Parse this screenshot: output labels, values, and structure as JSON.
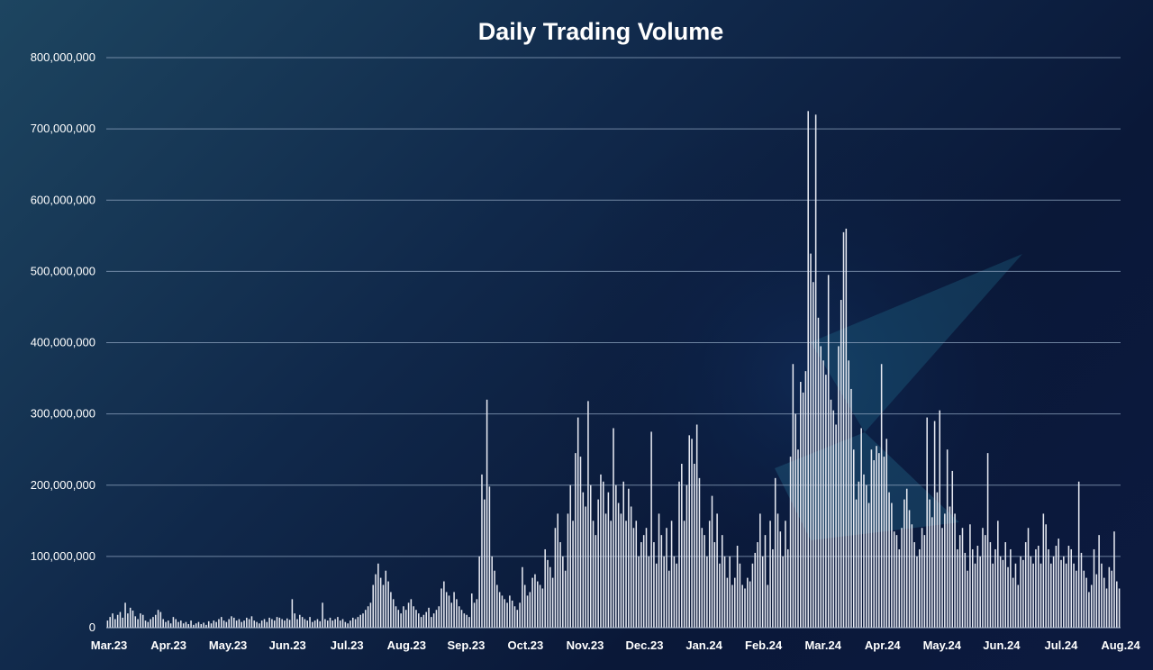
{
  "chart_data": {
    "type": "bar",
    "title": "Daily Trading Volume",
    "xlabel": "",
    "ylabel": "",
    "ylim": [
      0,
      800000000
    ],
    "yticks": [
      "0",
      "100,000,000",
      "200,000,000",
      "300,000,000",
      "400,000,000",
      "500,000,000",
      "600,000,000",
      "700,000,000",
      "800,000,000"
    ],
    "ytick_values": [
      0,
      100000000,
      200000000,
      300000000,
      400000000,
      500000000,
      600000000,
      700000000,
      800000000
    ],
    "x_start_label": "Mar.23",
    "xticks": [
      "Mar.23",
      "Apr.23",
      "May.23",
      "Jun.23",
      "Jul.23",
      "Aug.23",
      "Sep.23",
      "Oct.23",
      "Nov.23",
      "Dec.23",
      "Jan.24",
      "Feb.24",
      "Mar.24",
      "Apr.24",
      "May.24",
      "Jun.24",
      "Jul.24",
      "Aug.24"
    ],
    "grid": true,
    "legend": "none",
    "bar_color": "#e6e9f2",
    "series": [
      {
        "values": [
          10000000,
          15000000,
          20000000,
          12000000,
          18000000,
          22000000,
          14000000,
          35000000,
          20000000,
          28000000,
          24000000,
          16000000,
          12000000,
          20000000,
          18000000,
          10000000,
          8000000,
          12000000,
          15000000,
          18000000,
          25000000,
          22000000,
          12000000,
          8000000,
          10000000,
          6000000,
          15000000,
          12000000,
          8000000,
          10000000,
          6000000,
          8000000,
          5000000,
          10000000,
          4000000,
          6000000,
          8000000,
          5000000,
          7000000,
          4000000,
          9000000,
          6000000,
          10000000,
          8000000,
          12000000,
          15000000,
          10000000,
          8000000,
          12000000,
          16000000,
          14000000,
          10000000,
          12000000,
          8000000,
          10000000,
          14000000,
          12000000,
          16000000,
          10000000,
          8000000,
          6000000,
          10000000,
          12000000,
          8000000,
          14000000,
          12000000,
          10000000,
          15000000,
          14000000,
          12000000,
          10000000,
          13000000,
          11000000,
          40000000,
          20000000,
          12000000,
          18000000,
          15000000,
          12000000,
          10000000,
          15000000,
          8000000,
          10000000,
          12000000,
          9000000,
          35000000,
          12000000,
          10000000,
          14000000,
          10000000,
          12000000,
          15000000,
          10000000,
          12000000,
          8000000,
          6000000,
          10000000,
          14000000,
          12000000,
          15000000,
          18000000,
          20000000,
          25000000,
          30000000,
          35000000,
          60000000,
          75000000,
          90000000,
          70000000,
          60000000,
          80000000,
          65000000,
          50000000,
          40000000,
          30000000,
          25000000,
          20000000,
          30000000,
          25000000,
          35000000,
          40000000,
          30000000,
          25000000,
          20000000,
          15000000,
          18000000,
          22000000,
          28000000,
          15000000,
          20000000,
          25000000,
          30000000,
          55000000,
          65000000,
          50000000,
          45000000,
          35000000,
          50000000,
          40000000,
          30000000,
          25000000,
          20000000,
          18000000,
          15000000,
          48000000,
          35000000,
          40000000,
          100000000,
          215000000,
          180000000,
          320000000,
          198000000,
          100000000,
          80000000,
          60000000,
          50000000,
          45000000,
          40000000,
          35000000,
          45000000,
          38000000,
          30000000,
          25000000,
          35000000,
          85000000,
          60000000,
          45000000,
          50000000,
          70000000,
          75000000,
          65000000,
          60000000,
          55000000,
          110000000,
          95000000,
          85000000,
          70000000,
          140000000,
          160000000,
          120000000,
          100000000,
          80000000,
          160000000,
          200000000,
          150000000,
          245000000,
          295000000,
          240000000,
          190000000,
          170000000,
          318000000,
          200000000,
          150000000,
          130000000,
          180000000,
          215000000,
          205000000,
          160000000,
          190000000,
          150000000,
          280000000,
          200000000,
          175000000,
          160000000,
          205000000,
          150000000,
          195000000,
          170000000,
          140000000,
          150000000,
          100000000,
          120000000,
          130000000,
          140000000,
          100000000,
          275000000,
          120000000,
          90000000,
          160000000,
          130000000,
          100000000,
          140000000,
          80000000,
          150000000,
          100000000,
          90000000,
          205000000,
          230000000,
          150000000,
          200000000,
          270000000,
          265000000,
          230000000,
          285000000,
          210000000,
          140000000,
          130000000,
          100000000,
          150000000,
          185000000,
          120000000,
          160000000,
          90000000,
          130000000,
          100000000,
          70000000,
          100000000,
          60000000,
          70000000,
          115000000,
          90000000,
          60000000,
          55000000,
          70000000,
          65000000,
          90000000,
          105000000,
          120000000,
          160000000,
          100000000,
          130000000,
          60000000,
          150000000,
          110000000,
          210000000,
          160000000,
          135000000,
          100000000,
          150000000,
          110000000,
          240000000,
          370000000,
          300000000,
          250000000,
          345000000,
          330000000,
          360000000,
          725000000,
          525000000,
          485000000,
          720000000,
          435000000,
          395000000,
          375000000,
          355000000,
          495000000,
          320000000,
          305000000,
          285000000,
          395000000,
          460000000,
          555000000,
          560000000,
          375000000,
          335000000,
          250000000,
          180000000,
          205000000,
          280000000,
          215000000,
          200000000,
          175000000,
          250000000,
          235000000,
          255000000,
          245000000,
          370000000,
          240000000,
          265000000,
          190000000,
          175000000,
          135000000,
          130000000,
          110000000,
          140000000,
          180000000,
          195000000,
          165000000,
          145000000,
          120000000,
          100000000,
          110000000,
          140000000,
          130000000,
          295000000,
          180000000,
          155000000,
          290000000,
          190000000,
          305000000,
          140000000,
          160000000,
          250000000,
          170000000,
          220000000,
          160000000,
          110000000,
          130000000,
          140000000,
          105000000,
          80000000,
          145000000,
          110000000,
          90000000,
          115000000,
          100000000,
          140000000,
          130000000,
          245000000,
          120000000,
          90000000,
          110000000,
          150000000,
          100000000,
          95000000,
          120000000,
          85000000,
          110000000,
          70000000,
          90000000,
          60000000,
          100000000,
          95000000,
          120000000,
          140000000,
          100000000,
          90000000,
          110000000,
          115000000,
          90000000,
          160000000,
          145000000,
          110000000,
          90000000,
          100000000,
          115000000,
          125000000,
          95000000,
          100000000,
          90000000,
          115000000,
          110000000,
          90000000,
          80000000,
          205000000,
          105000000,
          80000000,
          70000000,
          50000000,
          60000000,
          110000000,
          75000000,
          130000000,
          90000000,
          70000000,
          55000000,
          85000000,
          80000000,
          135000000,
          65000000,
          55000000
        ]
      }
    ]
  }
}
